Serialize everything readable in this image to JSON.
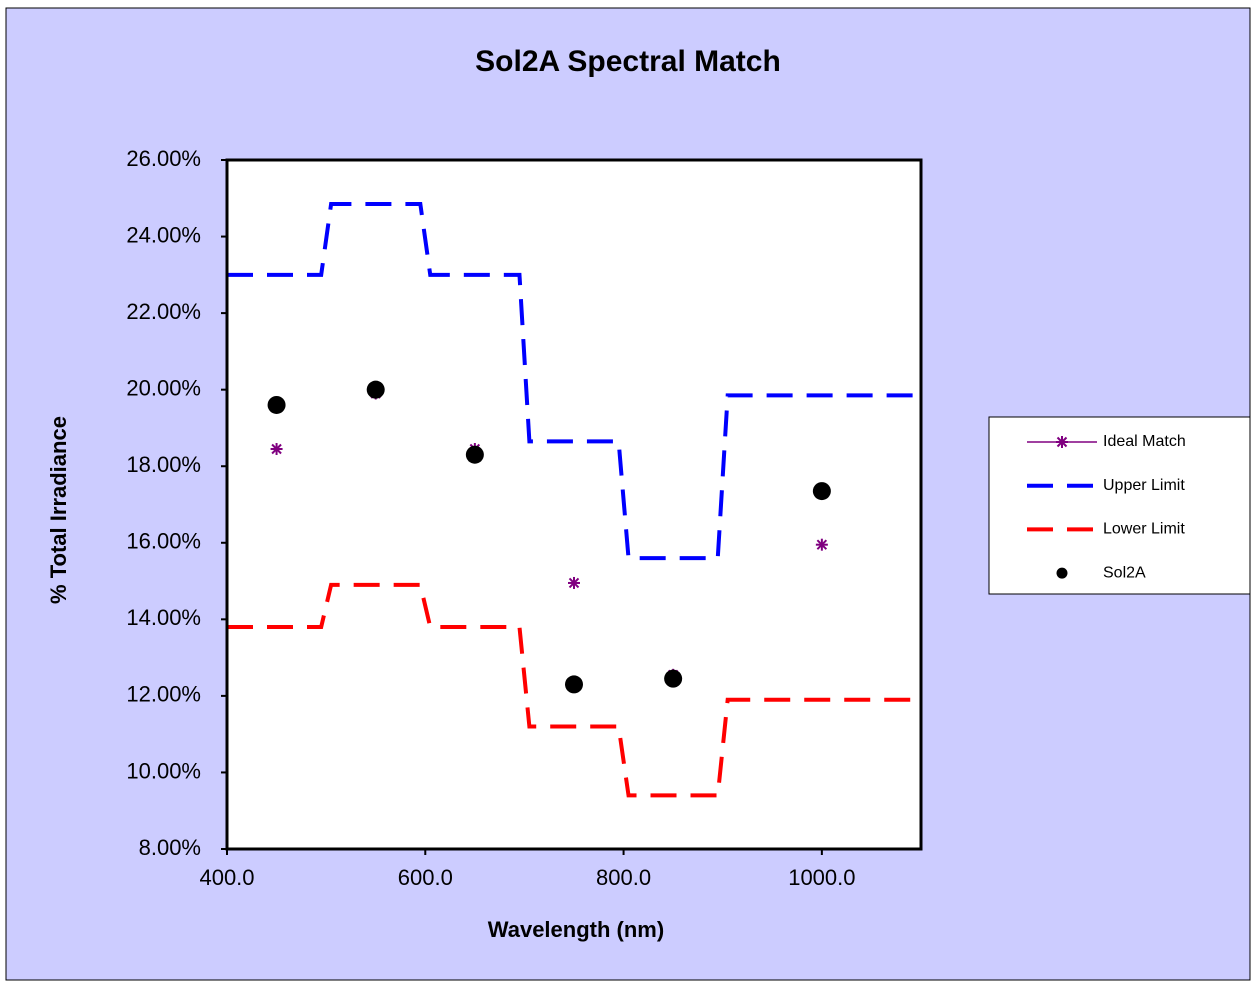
{
  "chart_data": {
    "type": "line",
    "title": "Sol2A Spectral Match",
    "x_label": "Wavelength (nm)",
    "y_label": "% Total Irradiance",
    "xlim": [
      400,
      1100
    ],
    "xticks": [
      {
        "value": 400,
        "label": "400.0"
      },
      {
        "value": 600,
        "label": "600.0"
      },
      {
        "value": 800,
        "label": "800.0"
      },
      {
        "value": 1000,
        "label": "1000.0"
      }
    ],
    "ylim": [
      8,
      26
    ],
    "yticks": [
      {
        "value": 8,
        "label": "8.00%"
      },
      {
        "value": 10,
        "label": "10.00%"
      },
      {
        "value": 12,
        "label": "12.00%"
      },
      {
        "value": 14,
        "label": "14.00%"
      },
      {
        "value": 16,
        "label": "16.00%"
      },
      {
        "value": 18,
        "label": "18.00%"
      },
      {
        "value": 20,
        "label": "20.00%"
      },
      {
        "value": 22,
        "label": "22.00%"
      },
      {
        "value": 24,
        "label": "24.00%"
      },
      {
        "value": 26,
        "label": "26.00%"
      }
    ],
    "legend": "right",
    "series": [
      {
        "name": "Ideal Match",
        "color": "#800080",
        "marker": "asterisk",
        "line": false,
        "x": [
          450,
          550,
          650,
          750,
          850,
          1000
        ],
        "values": [
          18.45,
          19.9,
          18.45,
          14.95,
          12.55,
          15.95
        ]
      },
      {
        "name": "Upper Limit",
        "color": "#0000ff",
        "marker": "none",
        "line": true,
        "dashed": true,
        "x": [
          400,
          495,
          505,
          595,
          605,
          695,
          705,
          795,
          805,
          895,
          905,
          1100
        ],
        "values": [
          23,
          23,
          24.85,
          24.85,
          23,
          23,
          18.65,
          18.65,
          15.6,
          15.6,
          19.85,
          19.85
        ]
      },
      {
        "name": "Lower Limit",
        "color": "#ff0000",
        "marker": "none",
        "line": true,
        "dashed": true,
        "x": [
          400,
          495,
          505,
          595,
          605,
          695,
          705,
          795,
          805,
          895,
          905,
          1100
        ],
        "values": [
          13.8,
          13.8,
          14.9,
          14.9,
          13.8,
          13.8,
          11.2,
          11.2,
          9.4,
          9.4,
          11.9,
          11.9
        ]
      },
      {
        "name": "Sol2A",
        "color": "#000000",
        "marker": "circle",
        "line": false,
        "x": [
          450,
          550,
          650,
          750,
          850,
          1000
        ],
        "values": [
          19.6,
          20.0,
          18.3,
          12.3,
          12.45,
          17.35
        ]
      }
    ]
  }
}
